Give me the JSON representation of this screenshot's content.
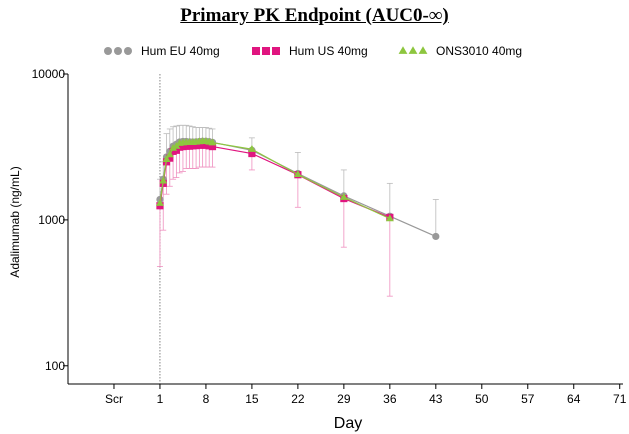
{
  "chart_data": {
    "type": "line",
    "title": "Primary PK Endpoint (AUC0-∞)",
    "xlabel": "Day",
    "ylabel": "Adalimumab (ng/mL)",
    "y_scale": "log",
    "ylim": [
      75,
      10000
    ],
    "y_ticks": [
      100,
      1000,
      10000
    ],
    "x_ticks": [
      {
        "label": "Scr",
        "value": -6
      },
      {
        "label": "1",
        "value": 1
      },
      {
        "label": "8",
        "value": 8
      },
      {
        "label": "15",
        "value": 15
      },
      {
        "label": "22",
        "value": 22
      },
      {
        "label": "29",
        "value": 29
      },
      {
        "label": "36",
        "value": 36
      },
      {
        "label": "43",
        "value": 43
      },
      {
        "label": "50",
        "value": 50
      },
      {
        "label": "57",
        "value": 57
      },
      {
        "label": "64",
        "value": 64
      },
      {
        "label": "71",
        "value": 71
      }
    ],
    "xlim": [
      -13,
      71.5
    ],
    "reference_line_x": 1,
    "legend_position": "top",
    "grid": false,
    "series": [
      {
        "name": "Hum EU 40mg",
        "color": "#999999",
        "marker": "circle",
        "x": [
          1,
          1.5,
          2,
          2.5,
          3,
          3.5,
          4,
          4.5,
          5,
          5.5,
          6,
          6.5,
          7,
          7.5,
          8,
          8.5,
          9,
          15,
          22,
          29,
          36,
          43
        ],
        "y": [
          1380,
          1900,
          2700,
          2950,
          3200,
          3300,
          3420,
          3450,
          3450,
          3430,
          3420,
          3430,
          3450,
          3460,
          3460,
          3440,
          3400,
          3000,
          2080,
          1460,
          1060,
          770
        ],
        "upper": [
          1900,
          2500,
          3900,
          4200,
          4350,
          4400,
          4450,
          4450,
          4450,
          4400,
          4350,
          4300,
          4300,
          4300,
          4300,
          4250,
          4200,
          3650,
          2900,
          2200,
          1780,
          1380
        ]
      },
      {
        "name": "Hum US 40mg",
        "color": "#e0157f",
        "marker": "square",
        "x": [
          1,
          1.5,
          2,
          2.5,
          3,
          3.5,
          4,
          4.5,
          5,
          5.5,
          6,
          6.5,
          7,
          7.5,
          8,
          8.5,
          9,
          15,
          22,
          29,
          36
        ],
        "y": [
          1250,
          1780,
          2500,
          2650,
          2950,
          3000,
          3150,
          3180,
          3200,
          3200,
          3220,
          3230,
          3250,
          3250,
          3250,
          3220,
          3180,
          2850,
          2040,
          1400,
          1040
        ],
        "lower": [
          480,
          850,
          1500,
          1700,
          1900,
          1950,
          2100,
          2150,
          2250,
          2250,
          2250,
          2250,
          2300,
          2300,
          2300,
          2300,
          2300,
          2200,
          1220,
          650,
          300
        ]
      },
      {
        "name": "ONS3010 40mg",
        "color": "#8dc63f",
        "marker": "triangle",
        "x": [
          1,
          1.5,
          2,
          2.5,
          3,
          3.5,
          4,
          4.5,
          5,
          5.5,
          6,
          6.5,
          7,
          7.5,
          8,
          8.5,
          9,
          15,
          22,
          29,
          36
        ],
        "y": [
          1300,
          1850,
          2600,
          2800,
          3100,
          3200,
          3350,
          3380,
          3400,
          3400,
          3400,
          3420,
          3440,
          3450,
          3450,
          3420,
          3380,
          3050,
          2050,
          1430,
          1020
        ]
      }
    ]
  }
}
